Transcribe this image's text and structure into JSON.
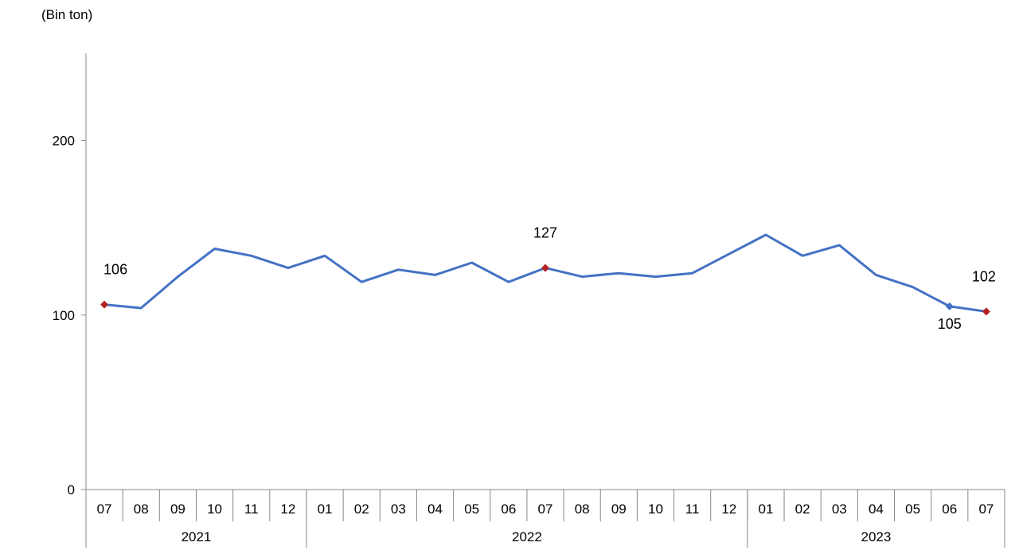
{
  "chart_data": {
    "type": "line",
    "unit_label": "(Bin  ton)",
    "title": "",
    "xlabel": "",
    "ylabel": "",
    "ylim": [
      0,
      250
    ],
    "yticks": [
      0,
      100,
      200
    ],
    "grid": false,
    "legend": "none",
    "categories": [
      "07",
      "08",
      "09",
      "10",
      "11",
      "12",
      "01",
      "02",
      "03",
      "04",
      "05",
      "06",
      "07",
      "08",
      "09",
      "10",
      "11",
      "12",
      "01",
      "02",
      "03",
      "04",
      "05",
      "06",
      "07"
    ],
    "year_groups": [
      {
        "label": "2021",
        "count": 6
      },
      {
        "label": "2022",
        "count": 12
      },
      {
        "label": "2023",
        "count": 7
      }
    ],
    "series": [
      {
        "color": "#4472C4",
        "values": [
          106,
          104,
          122,
          138,
          134,
          127,
          134,
          119,
          126,
          123,
          130,
          119,
          127,
          122,
          124,
          122,
          124,
          135,
          146,
          134,
          140,
          123,
          116,
          105,
          102
        ]
      }
    ],
    "marker_color": "#B22222",
    "marker_color_alt": "#4472C4",
    "annotations": [
      {
        "index": 0,
        "text": "106",
        "marker": "main",
        "label_pos": "above"
      },
      {
        "index": 12,
        "text": "127",
        "marker": "main",
        "label_pos": "above"
      },
      {
        "index": 23,
        "text": "105",
        "marker": "alt",
        "label_pos": "below"
      },
      {
        "index": 24,
        "text": "102",
        "marker": "main",
        "label_pos": "above"
      }
    ]
  }
}
